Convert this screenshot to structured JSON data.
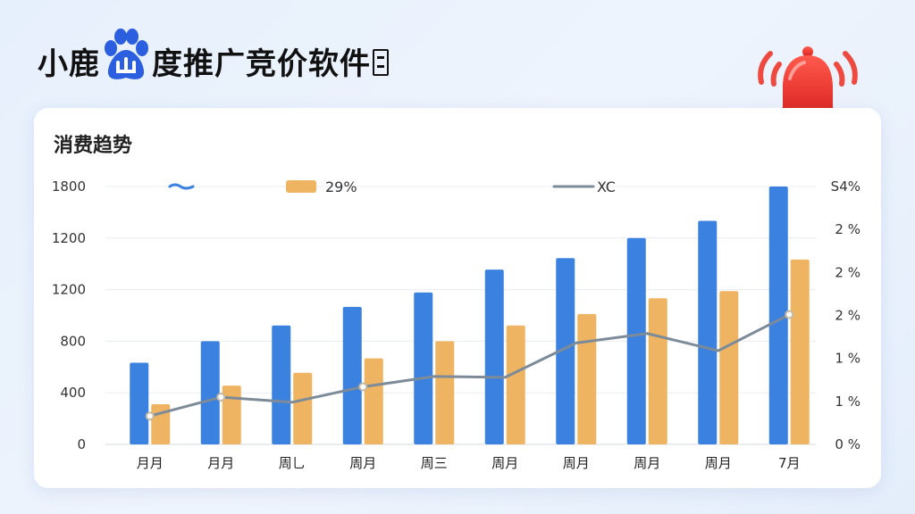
{
  "header": {
    "title_part1": "小鹿",
    "title_part2": "度推广竞价软件"
  },
  "icons": {
    "logo": "baidu-paw-icon",
    "alert": "alarm-bell-icon",
    "logo_color": "#2b5fe0",
    "bell_color": "#e8322e"
  },
  "card": {
    "title": "消费趋势"
  },
  "chart_data": {
    "type": "bar",
    "title": "消费趋势",
    "categories": [
      "月月",
      "月月",
      "周乚",
      "周月",
      "周三",
      "周月",
      "周月",
      "周月",
      "周月",
      "7月"
    ],
    "y_left_ticks": [
      "0",
      "400",
      "800",
      "1200",
      "1200",
      "1800"
    ],
    "y_right_ticks": [
      "0 %",
      "1 %",
      "1 %",
      "2 %",
      "2 %",
      "2 %",
      "S4%"
    ],
    "legend": [
      {
        "label": "",
        "marker": "wavy-line",
        "color": "#3b82e0"
      },
      {
        "label": "29%",
        "marker": "bar",
        "color": "#efb461"
      },
      {
        "label": "XC",
        "marker": "line",
        "color": "#7d8b99"
      }
    ],
    "series": [
      {
        "kind": "bar",
        "color": "#3b82e0",
        "values": [
          570,
          720,
          830,
          960,
          1060,
          1220,
          1300,
          1440,
          1560,
          1800
        ]
      },
      {
        "kind": "bar",
        "color": "#efb461",
        "values": [
          280,
          410,
          500,
          600,
          720,
          830,
          910,
          1020,
          1070,
          1290
        ]
      },
      {
        "kind": "line",
        "color": "#7d8b99",
        "marker_color": "#c4b9a5",
        "values": [
          0.33,
          0.55,
          0.49,
          0.67,
          0.79,
          0.78,
          1.18,
          1.29,
          1.09,
          1.51
        ]
      }
    ],
    "y_left_range": [
      0,
      1800
    ],
    "y_right_range": [
      0,
      3
    ],
    "grid": true,
    "legend_position": "top"
  }
}
